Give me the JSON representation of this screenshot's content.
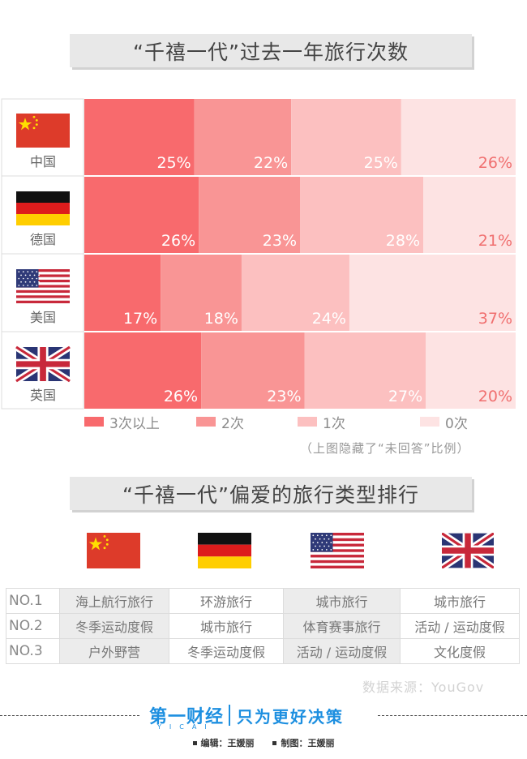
{
  "title1": "“千禧一代”过去一年旅行次数",
  "title2": "“千禧一代”偏爱的旅行类型排行",
  "chart_data": {
    "type": "bar",
    "orientation": "horizontal-stacked",
    "categories": [
      "中国",
      "德国",
      "美国",
      "英国"
    ],
    "series": [
      {
        "name": "3次以上",
        "color": "#f86a6d",
        "values": [
          25,
          26,
          17,
          26
        ]
      },
      {
        "name": "2次",
        "color": "#f99595",
        "values": [
          22,
          23,
          18,
          23
        ]
      },
      {
        "name": "1次",
        "color": "#fcc0c0",
        "values": [
          25,
          28,
          24,
          27
        ]
      },
      {
        "name": "0次",
        "color": "#fde3e3",
        "values": [
          26,
          21,
          37,
          20
        ]
      }
    ],
    "value_suffix": "%",
    "note": "（上图隐藏了“未回答”比例）"
  },
  "flags": [
    "china",
    "germany",
    "usa",
    "uk"
  ],
  "ranking": {
    "ranks": [
      "NO.1",
      "NO.2",
      "NO.3"
    ],
    "rows": [
      [
        "海上航行旅行",
        "环游旅行",
        "城市旅行",
        "城市旅行"
      ],
      [
        "冬季运动度假",
        "城市旅行",
        "体育赛事旅行",
        "活动 / 运动度假"
      ],
      [
        "户外野营",
        "冬季运动度假",
        "活动 / 运动度假",
        "文化度假"
      ]
    ]
  },
  "source": "数据来源：YouGov",
  "footer": {
    "logo_text": "第一财经",
    "logo_sub": "YICAI",
    "slogan": "只为更好决策",
    "editor": "编辑：王媛丽",
    "designer": "制图：王媛丽"
  }
}
